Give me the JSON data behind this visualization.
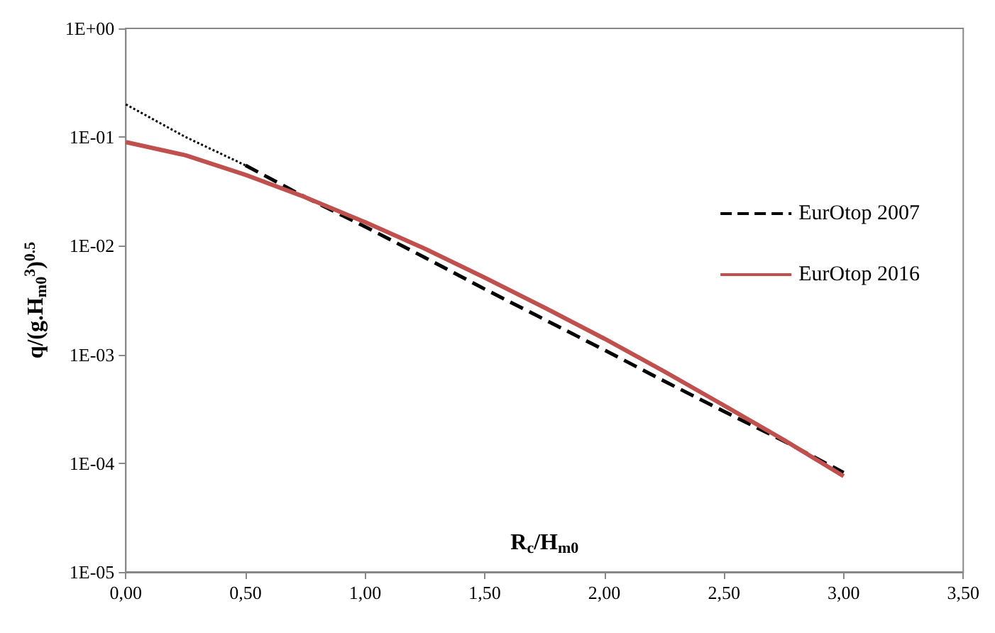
{
  "chart_data": {
    "type": "line",
    "xlabel": "R$_{c}$/H$_{m0}$",
    "ylabel": "q/(g.H$_{m0}$$^{3}$)$^{0.5}$",
    "log": "y",
    "grid": false,
    "legend": "top right",
    "marker": "none",
    "xlim": [
      0,
      3.5
    ],
    "xticks": [
      {
        "value": 0,
        "label": "0,00"
      },
      {
        "value": 0.5,
        "label": "0,50"
      },
      {
        "value": 1,
        "label": "1,00"
      },
      {
        "value": 1.5,
        "label": "1,50"
      },
      {
        "value": 2,
        "label": "2,00"
      },
      {
        "value": 2.5,
        "label": "2,50"
      },
      {
        "value": 3,
        "label": "3,00"
      },
      {
        "value": 3.5,
        "label": "3,50"
      }
    ],
    "ylim": [
      1e-05,
      1
    ],
    "yticks": [
      {
        "value": 1e-05,
        "label": "1E-05"
      },
      {
        "value": 0.0001,
        "label": "1E-04"
      },
      {
        "value": 0.001,
        "label": "1E-03"
      },
      {
        "value": 0.01,
        "label": "1E-02"
      },
      {
        "value": 0.1,
        "label": "1E-01"
      },
      {
        "value": 1,
        "label": "1E+00"
      }
    ],
    "series": [
      {
        "color": "#000000",
        "line_style": "dotted",
        "x": [
          0,
          0.25,
          0.5
        ],
        "values": [
          0.2,
          0.1,
          0.055
        ]
      },
      {
        "name": "EurOtop 2007",
        "color": "#000000",
        "line_style": "dashed",
        "x": [
          0.5,
          0.75,
          1,
          1.25,
          1.5,
          1.75,
          2,
          2.25,
          2.5,
          2.75,
          3
        ],
        "values": [
          0.055,
          0.028,
          0.015,
          0.0078,
          0.004,
          0.0021,
          0.0011,
          0.00057,
          0.0003,
          0.00016,
          8.2e-05
        ]
      },
      {
        "name": "EurOtop 2016",
        "color": "#c0504d",
        "line_style": "solid",
        "x": [
          0,
          0.25,
          0.5,
          0.75,
          1,
          1.25,
          1.5,
          1.75,
          2,
          2.25,
          2.5,
          2.75,
          3
        ],
        "values": [
          0.09,
          0.068,
          0.045,
          0.028,
          0.0165,
          0.0094,
          0.0051,
          0.0027,
          0.0014,
          0.0007,
          0.00034,
          0.000164,
          7.6e-05
        ]
      }
    ]
  }
}
